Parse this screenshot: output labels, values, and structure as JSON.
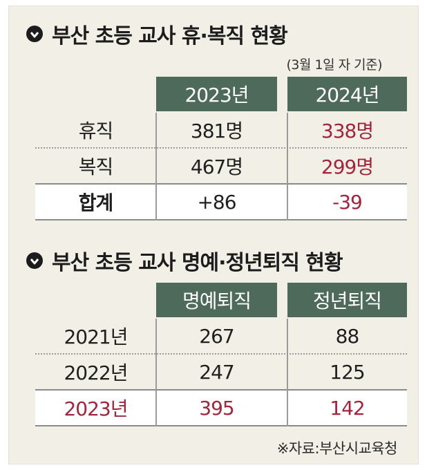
{
  "section1": {
    "title": "부산 초등 교사 휴·복직 현황",
    "note": "(3월 1일 자 기준)",
    "headers": [
      "2023년",
      "2024년"
    ],
    "rows": [
      {
        "label": "휴직",
        "v2023": "381명",
        "v2024": "338명"
      },
      {
        "label": "복직",
        "v2023": "467명",
        "v2024": "299명"
      },
      {
        "label": "합계",
        "v2023": "+86",
        "v2024": "-39"
      }
    ]
  },
  "section2": {
    "title": "부산 초등 교사 명예·정년퇴직 현황",
    "headers": [
      "명예퇴직",
      "정년퇴직"
    ],
    "rows": [
      {
        "label": "2021년",
        "honorary": "267",
        "retirement": "88"
      },
      {
        "label": "2022년",
        "honorary": "247",
        "retirement": "125"
      },
      {
        "label": "2023년",
        "honorary": "395",
        "retirement": "142"
      }
    ]
  },
  "source": "※자료:부산시교육청",
  "colors": {
    "header_bg": "#4d6a5b",
    "highlight_red": "#a3243b",
    "panel_bg": "#f2efe6"
  },
  "icons": {
    "title_marker": "circle-down-arrow-icon"
  }
}
